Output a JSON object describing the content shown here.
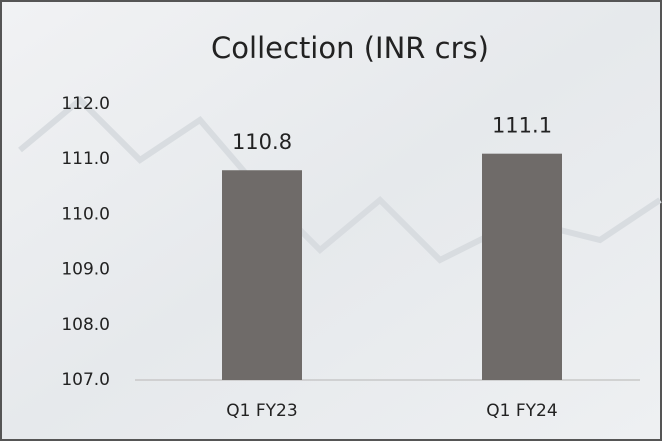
{
  "chart_data": {
    "type": "bar",
    "title": "Collection (INR crs)",
    "categories": [
      "Q1 FY23",
      "Q1 FY24"
    ],
    "values": [
      110.8,
      111.1
    ],
    "color": "#6f6b69",
    "ylim": [
      107,
      112
    ],
    "yticks": [
      {
        "value": 107,
        "label": "107.0"
      },
      {
        "value": 108,
        "label": "108.0"
      },
      {
        "value": 109,
        "label": "109.0"
      },
      {
        "value": 110,
        "label": "110.0"
      },
      {
        "value": 111,
        "label": "111.0"
      },
      {
        "value": 112,
        "label": "112.0"
      }
    ],
    "grid": false
  }
}
